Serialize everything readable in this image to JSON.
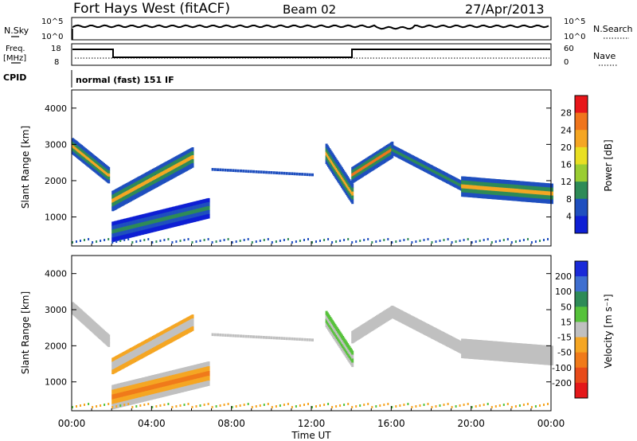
{
  "header": {
    "title": "Fort Hays West (fitACF)",
    "beam": "Beam 02",
    "date": "27/Apr/2013"
  },
  "top_panels": {
    "noise_left_label": "N.Sky",
    "noise_right_label": "N.Search",
    "noise_ticks_left": [
      "10^5",
      "10^0"
    ],
    "noise_ticks_right": [
      "10^5",
      "10^0"
    ],
    "freq_label_line1": "Freq.",
    "freq_label_line2": "[MHz]",
    "freq_ticks": [
      "18",
      "8"
    ],
    "nave_label": "Nave",
    "nave_ticks": [
      "60",
      "0"
    ],
    "cpid_label": "CPID",
    "cpid_text": "normal (fast) 151 IF"
  },
  "chart_data": [
    {
      "type": "heatmap",
      "name": "power",
      "ylabel": "Slant Range [km]",
      "xlabel": "",
      "y_ticks": [
        "4000",
        "3000",
        "2000",
        "1000"
      ],
      "colorbar_label": "Power [dB]",
      "colorbar_ticks": [
        "28",
        "24",
        "20",
        "16",
        "12",
        "8",
        "4"
      ],
      "colorbar_colors": [
        "#e8161a",
        "#f0751c",
        "#f5a623",
        "#e9df22",
        "#9acd32",
        "#2e8b57",
        "#1f4fbf",
        "#0e1fd4"
      ],
      "ylim": [
        200,
        4500
      ],
      "xlim_hours": [
        0,
        24
      ]
    },
    {
      "type": "heatmap",
      "name": "velocity",
      "ylabel": "Slant Range [km]",
      "xlabel": "Time UT",
      "y_ticks": [
        "4000",
        "3000",
        "2000",
        "1000"
      ],
      "x_ticks": [
        "00:00",
        "04:00",
        "08:00",
        "12:00",
        "16:00",
        "20:00",
        "00:00"
      ],
      "colorbar_label": "Velocity [m s⁻¹]",
      "colorbar_ticks": [
        "200",
        "100",
        "50",
        "15",
        "-15",
        "-50",
        "-100",
        "-200"
      ],
      "colorbar_colors": [
        "#1a2ad8",
        "#3f6fd0",
        "#2e8b57",
        "#56c23a",
        "#c0c0c0",
        "#f5a623",
        "#f07a1a",
        "#e84b1a",
        "#e4181a"
      ],
      "ylim": [
        200,
        4500
      ],
      "xlim_hours": [
        0,
        24
      ]
    }
  ]
}
